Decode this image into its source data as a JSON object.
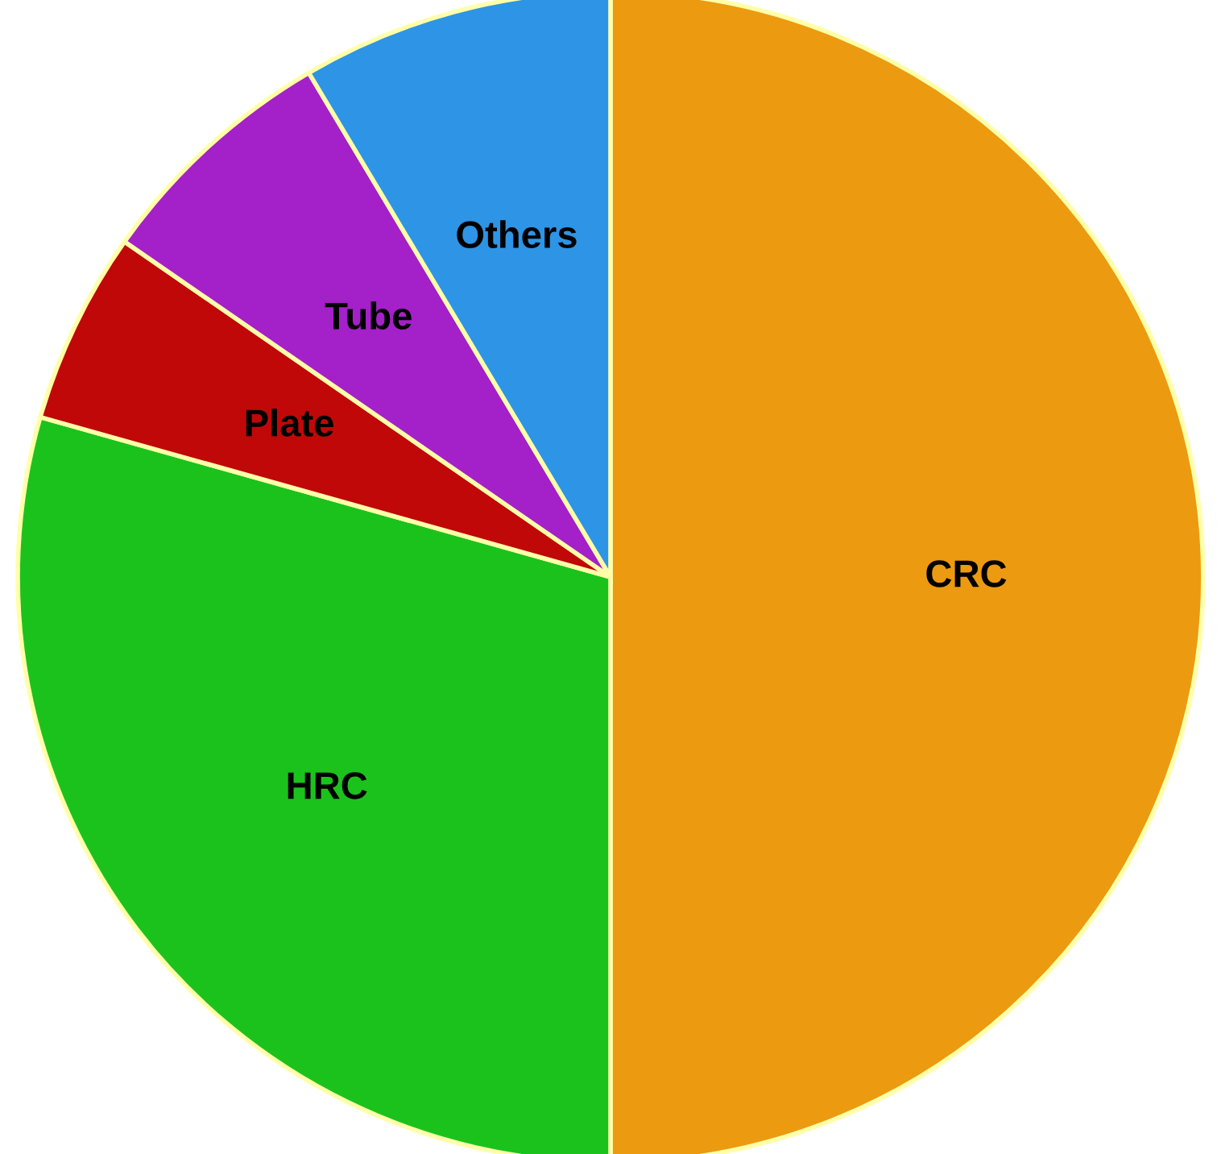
{
  "chart_data": {
    "type": "pie",
    "categories": [
      "CRC",
      "HRC",
      "Plate",
      "Tube",
      "Others"
    ],
    "values": [
      50,
      29.4,
      5.3,
      6.8,
      8.5
    ],
    "colors": [
      "#ec9a10",
      "#1cc21c",
      "#c00808",
      "#a420c8",
      "#2e94e6"
    ]
  }
}
